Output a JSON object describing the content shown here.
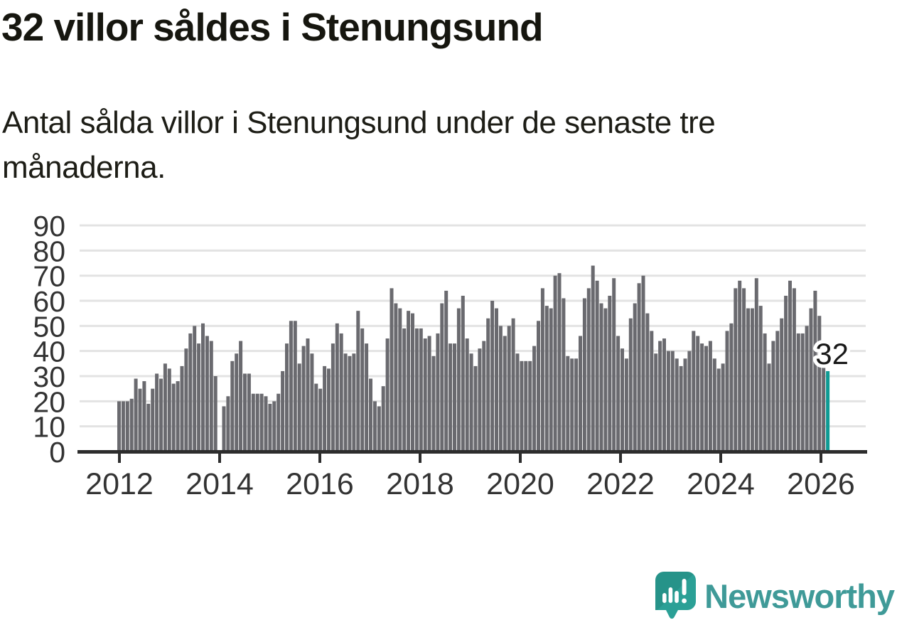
{
  "title": "32 villor såldes i Stenungsund",
  "subtitle": "Antal sålda villor i Stenungsund under de senaste tre månaderna.",
  "subtitle_lines": [
    "Antal sålda villor i Stenungsund under de senaste tre",
    "månaderna."
  ],
  "logo": {
    "brand": "Newsworthy",
    "icon": "speech-bubble-bar-chart-icon"
  },
  "colors": {
    "bar": "#6a6a6f",
    "highlight": "#0f9b94",
    "grid": "#e3e3e3",
    "axis": "#2d2d2d",
    "tick_text": "#333333",
    "annotation_text": "#191919",
    "logo_teal": "#2ba096",
    "logo_text": "#3f9a98"
  },
  "chart_data": {
    "type": "bar",
    "title": "32 villor såldes i Stenungsund",
    "subtitle": "Antal sålda villor i Stenungsund under de senaste tre månaderna.",
    "unit": "antal sålda villor (rullande 3 månader)",
    "x_start": "2012-01",
    "x_end": "2026-02",
    "x_tick_labels": [
      "2012",
      "2014",
      "2016",
      "2018",
      "2020",
      "2022",
      "2024",
      "2026"
    ],
    "y_ticks": [
      0,
      10,
      20,
      30,
      40,
      50,
      60,
      70,
      80,
      90
    ],
    "ylim": [
      0,
      90
    ],
    "grid": "horizontal",
    "legend": "none",
    "highlight_last": true,
    "highlight_label": "32",
    "highlight_value": 32,
    "values": [
      20,
      20,
      20,
      21,
      29,
      25,
      28,
      19,
      25,
      31,
      29,
      35,
      33,
      27,
      28,
      34,
      41,
      47,
      50,
      43,
      51,
      46,
      44,
      30,
      0,
      18,
      22,
      36,
      39,
      44,
      31,
      31,
      23,
      23,
      23,
      22,
      19,
      20,
      23,
      32,
      43,
      52,
      52,
      35,
      42,
      45,
      39,
      27,
      25,
      34,
      33,
      43,
      51,
      47,
      39,
      38,
      39,
      56,
      49,
      43,
      29,
      20,
      18,
      26,
      45,
      65,
      59,
      57,
      49,
      56,
      55,
      49,
      49,
      45,
      46,
      38,
      47,
      59,
      64,
      43,
      43,
      57,
      62,
      45,
      39,
      34,
      41,
      44,
      53,
      60,
      57,
      50,
      46,
      50,
      53,
      39,
      36,
      36,
      36,
      42,
      52,
      65,
      58,
      57,
      70,
      71,
      61,
      38,
      37,
      37,
      46,
      61,
      65,
      74,
      68,
      59,
      57,
      62,
      69,
      46,
      41,
      37,
      53,
      59,
      67,
      70,
      55,
      48,
      39,
      44,
      45,
      40,
      40,
      37,
      34,
      37,
      40,
      48,
      46,
      43,
      42,
      44,
      37,
      33,
      35,
      48,
      51,
      65,
      68,
      65,
      57,
      57,
      69,
      58,
      47,
      35,
      44,
      48,
      53,
      62,
      68,
      65,
      47,
      47,
      50,
      57,
      64,
      54,
      36,
      32
    ]
  }
}
